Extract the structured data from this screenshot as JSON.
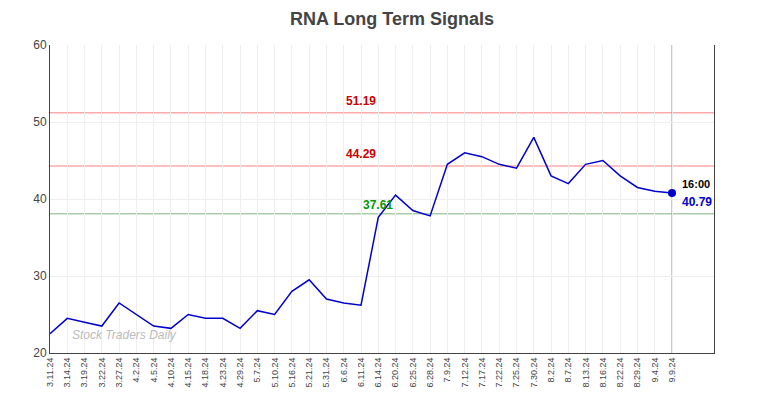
{
  "chart_data": {
    "type": "line",
    "title": "RNA Long Term Signals",
    "categories": [
      "3.11.24",
      "3.14.24",
      "3.19.24",
      "3.22.24",
      "3.27.24",
      "4.2.24",
      "4.5.24",
      "4.10.24",
      "4.15.24",
      "4.18.24",
      "4.23.24",
      "4.29.24",
      "5.7.24",
      "5.10.24",
      "5.16.24",
      "5.21.24",
      "5.31.24",
      "6.6.24",
      "6.11.24",
      "6.14.24",
      "6.20.24",
      "6.25.24",
      "6.28.24",
      "7.9.24",
      "7.12.24",
      "7.17.24",
      "7.22.24",
      "7.25.24",
      "7.30.24",
      "8.2.24",
      "8.7.24",
      "8.13.24",
      "8.16.24",
      "8.22.24",
      "8.29.24",
      "9.4.24",
      "9.9.24"
    ],
    "series": [
      {
        "color": "#0000cc",
        "values": [
          22.5,
          24.5,
          24.0,
          23.5,
          26.5,
          25.0,
          23.5,
          23.2,
          25.0,
          24.5,
          24.5,
          23.2,
          25.5,
          25.0,
          28.0,
          29.5,
          27.0,
          26.5,
          26.2,
          37.61,
          40.5,
          38.5,
          37.8,
          44.5,
          46.0,
          45.5,
          44.5,
          44.0,
          48.0,
          43.0,
          42.0,
          44.5,
          45.0,
          43.0,
          41.5,
          41.0,
          40.79
        ]
      }
    ],
    "ylim": [
      20,
      60
    ],
    "yticks": [
      20,
      30,
      40,
      50,
      60
    ],
    "grid": true,
    "hlines": [
      {
        "value": 51.19,
        "color": "#ffaaaa"
      },
      {
        "value": 44.29,
        "color": "#ffaaaa"
      },
      {
        "value": 38.1,
        "color": "#aaccaa"
      }
    ],
    "annotations": [
      {
        "text": "51.19",
        "color": "#cc0000",
        "x": "6.11.24",
        "y": 51.19
      },
      {
        "text": "44.29",
        "color": "#cc0000",
        "x": "6.11.24",
        "y": 44.29
      },
      {
        "text": "37.61",
        "color": "#009900",
        "x": "6.14.24",
        "y": 37.61
      },
      {
        "text": "16:00",
        "color": "#000000",
        "x": "9.9.24",
        "y": 40.79
      },
      {
        "text": "40.79",
        "color": "#0000cc",
        "x": "9.9.24",
        "y": 40.79
      }
    ],
    "watermark": {
      "text": "Stock Traders Daily",
      "color": "#bbbbbb"
    }
  }
}
